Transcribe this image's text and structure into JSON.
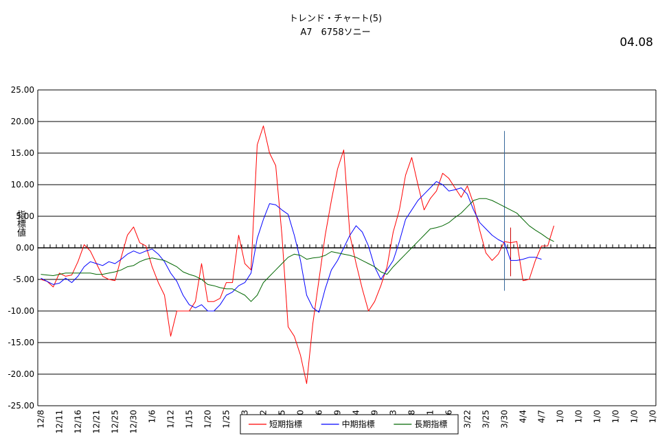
{
  "title": "トレンド・チャート(5)",
  "subtitle": "A7　6758ソニー",
  "date_stamp": "04.08",
  "chart_data": {
    "type": "line",
    "title": "トレンド・チャート(5)",
    "subtitle": "A7　6758ソニー",
    "ylabel": "指標値",
    "xlabel": "",
    "ylim": [
      -25,
      25
    ],
    "yticks": [
      25,
      20,
      15,
      10,
      5,
      0,
      -5,
      -10,
      -15,
      -20,
      -25
    ],
    "ytick_labels": [
      "25.00",
      "20.00",
      "15.00",
      "10.00",
      "5.00",
      "0.00",
      "-5.00",
      "-10.00",
      "-15.00",
      "-20.00",
      "-25.00"
    ],
    "x_categories_count": 100,
    "x_tick_labels": [
      {
        "index": 0,
        "label": "12/8"
      },
      {
        "index": 3,
        "label": "12/11"
      },
      {
        "index": 6,
        "label": "12/16"
      },
      {
        "index": 9,
        "label": "12/21"
      },
      {
        "index": 12,
        "label": "12/25"
      },
      {
        "index": 15,
        "label": "12/30"
      },
      {
        "index": 18,
        "label": "1/6"
      },
      {
        "index": 21,
        "label": "1/12"
      },
      {
        "index": 24,
        "label": "1/15"
      },
      {
        "index": 27,
        "label": "1/20"
      },
      {
        "index": 30,
        "label": "1/25"
      },
      {
        "index": 33,
        "label": "3"
      },
      {
        "index": 36,
        "label": "2"
      },
      {
        "index": 39,
        "label": "5"
      },
      {
        "index": 42,
        "label": "0"
      },
      {
        "index": 45,
        "label": "6"
      },
      {
        "index": 48,
        "label": "9"
      },
      {
        "index": 51,
        "label": "4"
      },
      {
        "index": 54,
        "label": "9"
      },
      {
        "index": 57,
        "label": "3"
      },
      {
        "index": 60,
        "label": "8"
      },
      {
        "index": 63,
        "label": "1"
      },
      {
        "index": 66,
        "label": "3/16"
      },
      {
        "index": 69,
        "label": "3/22"
      },
      {
        "index": 72,
        "label": "3/25"
      },
      {
        "index": 75,
        "label": "3/30"
      },
      {
        "index": 78,
        "label": "4/4"
      },
      {
        "index": 81,
        "label": "4/7"
      },
      {
        "index": 84,
        "label": "1/0"
      },
      {
        "index": 87,
        "label": "1/0"
      },
      {
        "index": 90,
        "label": "1/0"
      },
      {
        "index": 93,
        "label": "1/0"
      },
      {
        "index": 96,
        "label": "1/0"
      },
      {
        "index": 99,
        "label": "1/0"
      }
    ],
    "grid": true,
    "legend_placement": "bottom",
    "series": [
      {
        "name": "短期指標",
        "color": "#ff0000",
        "values": [
          -5.0,
          -5.3,
          -6.2,
          -4.0,
          -4.5,
          -4.3,
          -2.2,
          0.5,
          -0.5,
          -2.5,
          -4.5,
          -5.0,
          -5.2,
          -1.5,
          2.0,
          3.3,
          0.8,
          0.3,
          -3.0,
          -5.5,
          -7.5,
          -14.0,
          -10.0,
          -10.0,
          -10.0,
          -8.5,
          -2.5,
          -8.5,
          -8.5,
          -8.0,
          -5.5,
          -5.5,
          2.0,
          -2.5,
          -3.5,
          16.3,
          19.3,
          15.0,
          13.0,
          2.0,
          -12.5,
          -14.0,
          -17.0,
          -21.5,
          -12.0,
          -5.0,
          2.0,
          7.5,
          12.5,
          15.5,
          2.0,
          -2.5,
          -6.5,
          -10.0,
          -8.5,
          -6.0,
          -3.0,
          2.5,
          6.0,
          11.5,
          14.3,
          10.0,
          6.0,
          7.8,
          9.0,
          11.8,
          11.0,
          9.5,
          8.0,
          9.8,
          7.0,
          2.8,
          -0.8,
          -2.0,
          -1.0,
          1.0,
          0.8,
          1.0,
          -5.2,
          -5.0,
          -2.0,
          0.3,
          0.3,
          3.5
        ]
      },
      {
        "name": "中期指標",
        "color": "#0000ff",
        "values": [
          -4.8,
          -5.3,
          -5.8,
          -5.6,
          -4.8,
          -5.5,
          -4.5,
          -3.0,
          -2.2,
          -2.5,
          -2.8,
          -2.2,
          -2.5,
          -1.8,
          -1.0,
          -0.5,
          -0.9,
          -0.5,
          -0.2,
          -1.0,
          -2.2,
          -4.0,
          -5.3,
          -7.5,
          -9.0,
          -9.5,
          -9.0,
          -10.0,
          -10.0,
          -9.0,
          -7.5,
          -7.0,
          -6.0,
          -5.5,
          -4.0,
          1.5,
          4.5,
          7.0,
          6.8,
          6.0,
          5.3,
          2.0,
          -2.0,
          -7.5,
          -9.5,
          -10.2,
          -6.5,
          -3.5,
          -2.0,
          0.0,
          2.0,
          3.5,
          2.5,
          0.3,
          -3.0,
          -5.0,
          -3.5,
          -2.0,
          1.0,
          4.5,
          6.0,
          7.5,
          8.5,
          9.5,
          10.5,
          10.0,
          9.0,
          9.2,
          9.5,
          8.5,
          6.0,
          4.0,
          3.0,
          2.0,
          1.3,
          0.8,
          -2.0,
          -2.0,
          -1.8,
          -1.5,
          -1.5,
          -1.8
        ]
      },
      {
        "name": "長期指標",
        "color": "#006600",
        "values": [
          -4.2,
          -4.3,
          -4.4,
          -4.2,
          -4.0,
          -4.0,
          -4.0,
          -4.0,
          -4.0,
          -4.2,
          -4.2,
          -4.0,
          -3.8,
          -3.5,
          -3.0,
          -2.8,
          -2.2,
          -1.8,
          -1.6,
          -1.8,
          -2.0,
          -2.5,
          -3.0,
          -3.8,
          -4.2,
          -4.5,
          -5.0,
          -5.8,
          -6.0,
          -6.3,
          -6.5,
          -6.5,
          -7.0,
          -7.5,
          -8.5,
          -7.5,
          -5.5,
          -4.5,
          -3.5,
          -2.5,
          -1.5,
          -1.0,
          -1.2,
          -1.8,
          -1.6,
          -1.5,
          -1.2,
          -0.6,
          -0.8,
          -1.0,
          -1.2,
          -1.5,
          -2.0,
          -2.5,
          -3.0,
          -3.8,
          -4.2,
          -3.0,
          -2.0,
          -1.0,
          0.0,
          1.0,
          2.0,
          3.0,
          3.2,
          3.5,
          4.0,
          4.8,
          5.5,
          6.5,
          7.5,
          7.8,
          7.8,
          7.5,
          7.0,
          6.5,
          6.0,
          5.5,
          4.5,
          3.5,
          2.8,
          2.2,
          1.5,
          1.0
        ]
      }
    ],
    "annotations": [
      {
        "type": "vline",
        "x_index": 75,
        "y_from": 18.5,
        "y_to": -6.8,
        "color": "#336699"
      },
      {
        "type": "vline",
        "x_index": 76,
        "y_from": 3.2,
        "y_to": -4.5,
        "color": "#cc0000"
      }
    ]
  }
}
